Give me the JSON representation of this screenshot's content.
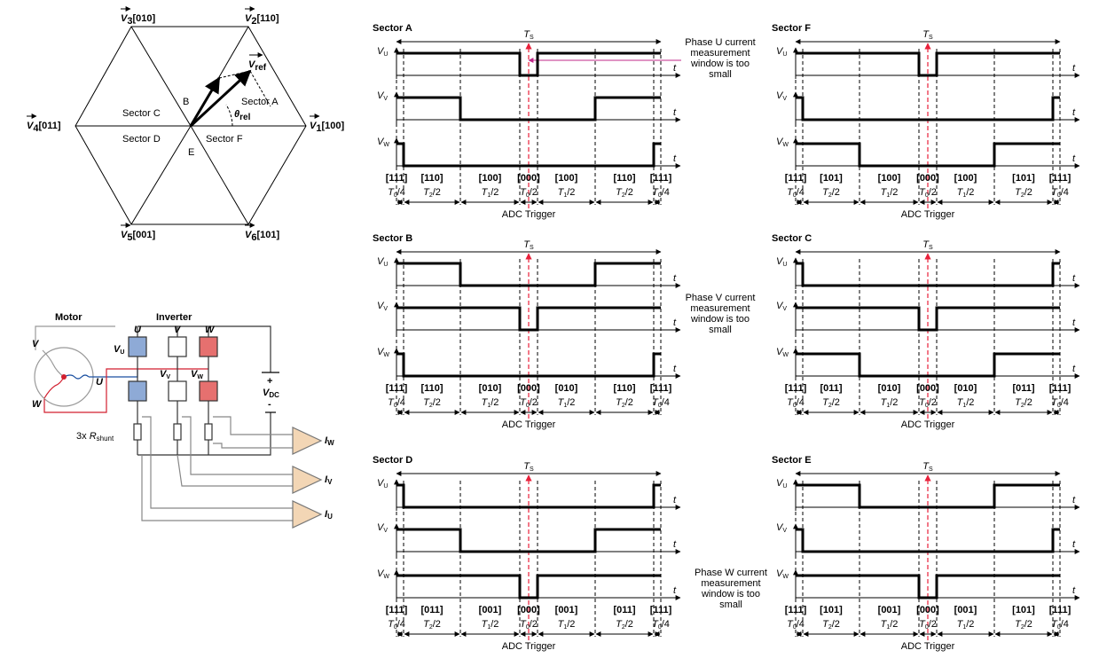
{
  "hexagon": {
    "vectors": [
      {
        "symbol": "V",
        "sub": "1",
        "code": "[100]"
      },
      {
        "symbol": "V",
        "sub": "2",
        "code": "[110]"
      },
      {
        "symbol": "V",
        "sub": "3",
        "code": "[010]"
      },
      {
        "symbol": "V",
        "sub": "4",
        "code": "[011]"
      },
      {
        "symbol": "V",
        "sub": "5",
        "code": "[001]"
      },
      {
        "symbol": "V",
        "sub": "6",
        "code": "[101]"
      }
    ],
    "sectors": [
      "Sector A",
      "Sector C",
      "Sector D",
      "Sector F"
    ],
    "regions": [
      "B",
      "E"
    ],
    "vref": {
      "symbol": "V",
      "sub": "ref"
    },
    "angle": {
      "symbol": "θ",
      "sub": "rel"
    }
  },
  "circuit": {
    "motor": "Motor",
    "inverter": "Inverter",
    "phases": [
      "U",
      "V",
      "W"
    ],
    "windings": [
      "V",
      "U",
      "W"
    ],
    "voltages": [
      {
        "symbol": "V",
        "sub": "U"
      },
      {
        "symbol": "V",
        "sub": "V"
      },
      {
        "symbol": "V",
        "sub": "W"
      }
    ],
    "vdc": {
      "symbol": "V",
      "sub": "DC"
    },
    "plus": "+",
    "minus": "-",
    "shunt": {
      "prefix": "3x ",
      "symbol": "R",
      "sub": "shunt"
    },
    "currents": [
      {
        "symbol": "I",
        "sub": "W"
      },
      {
        "symbol": "I",
        "sub": "V"
      },
      {
        "symbol": "I",
        "sub": "U"
      }
    ]
  },
  "panels": [
    {
      "title": "Sector A",
      "period": {
        "symbol": "T",
        "sub": "S"
      },
      "signals": [
        {
          "symbol": "V",
          "sub": "U"
        },
        {
          "symbol": "V",
          "sub": "V"
        },
        {
          "symbol": "V",
          "sub": "W"
        }
      ],
      "time_axis": "t",
      "states": [
        "[111]",
        "[110]",
        "[100]",
        "[000]",
        "[100]",
        "[110]",
        "[111]"
      ],
      "intervals": [
        {
          "symbol": "T",
          "sub": "0",
          "rest": "/4"
        },
        {
          "symbol": "T",
          "sub": "2",
          "rest": "/2"
        },
        {
          "symbol": "T",
          "sub": "1",
          "rest": "/2"
        },
        {
          "symbol": "T",
          "sub": "0",
          "rest": "/2"
        },
        {
          "symbol": "T",
          "sub": "1",
          "rest": "/2"
        },
        {
          "symbol": "T",
          "sub": "2",
          "rest": "/2"
        },
        {
          "symbol": "T",
          "sub": "0",
          "rest": "/4"
        }
      ],
      "trigger": "ADC Trigger"
    },
    {
      "title": "Sector F",
      "period": {
        "symbol": "T",
        "sub": "S"
      },
      "signals": [
        {
          "symbol": "V",
          "sub": "U"
        },
        {
          "symbol": "V",
          "sub": "V"
        },
        {
          "symbol": "V",
          "sub": "W"
        }
      ],
      "time_axis": "t",
      "states": [
        "[111]",
        "[101]",
        "[100]",
        "[000]",
        "[100]",
        "[101]",
        "[111]"
      ],
      "intervals": [
        {
          "symbol": "T",
          "sub": "0",
          "rest": "/4"
        },
        {
          "symbol": "T",
          "sub": "2",
          "rest": "/2"
        },
        {
          "symbol": "T",
          "sub": "1",
          "rest": "/2"
        },
        {
          "symbol": "T",
          "sub": "0",
          "rest": "/2"
        },
        {
          "symbol": "T",
          "sub": "1",
          "rest": "/2"
        },
        {
          "symbol": "T",
          "sub": "2",
          "rest": "/2"
        },
        {
          "symbol": "T",
          "sub": "0",
          "rest": "/4"
        }
      ],
      "trigger": "ADC Trigger"
    },
    {
      "title": "Sector B",
      "period": {
        "symbol": "T",
        "sub": "S"
      },
      "signals": [
        {
          "symbol": "V",
          "sub": "U"
        },
        {
          "symbol": "V",
          "sub": "V"
        },
        {
          "symbol": "V",
          "sub": "W"
        }
      ],
      "time_axis": "t",
      "states": [
        "[111]",
        "[110]",
        "[010]",
        "[000]",
        "[010]",
        "[110]",
        "[111]"
      ],
      "intervals": [
        {
          "symbol": "T",
          "sub": "0",
          "rest": "/4"
        },
        {
          "symbol": "T",
          "sub": "2",
          "rest": "/2"
        },
        {
          "symbol": "T",
          "sub": "1",
          "rest": "/2"
        },
        {
          "symbol": "T",
          "sub": "0",
          "rest": "/2"
        },
        {
          "symbol": "T",
          "sub": "1",
          "rest": "/2"
        },
        {
          "symbol": "T",
          "sub": "2",
          "rest": "/2"
        },
        {
          "symbol": "T",
          "sub": "0",
          "rest": "/4"
        }
      ],
      "trigger": "ADC Trigger"
    },
    {
      "title": "Sector C",
      "period": {
        "symbol": "T",
        "sub": "S"
      },
      "signals": [
        {
          "symbol": "V",
          "sub": "U"
        },
        {
          "symbol": "V",
          "sub": "V"
        },
        {
          "symbol": "V",
          "sub": "W"
        }
      ],
      "time_axis": "t",
      "states": [
        "[111]",
        "[011]",
        "[010]",
        "[000]",
        "[010]",
        "[011]",
        "[111]"
      ],
      "intervals": [
        {
          "symbol": "T",
          "sub": "0",
          "rest": "/4"
        },
        {
          "symbol": "T",
          "sub": "2",
          "rest": "/2"
        },
        {
          "symbol": "T",
          "sub": "1",
          "rest": "/2"
        },
        {
          "symbol": "T",
          "sub": "0",
          "rest": "/2"
        },
        {
          "symbol": "T",
          "sub": "1",
          "rest": "/2"
        },
        {
          "symbol": "T",
          "sub": "2",
          "rest": "/2"
        },
        {
          "symbol": "T",
          "sub": "0",
          "rest": "/4"
        }
      ],
      "trigger": "ADC Trigger"
    },
    {
      "title": "Sector D",
      "period": {
        "symbol": "T",
        "sub": "S"
      },
      "signals": [
        {
          "symbol": "V",
          "sub": "U"
        },
        {
          "symbol": "V",
          "sub": "V"
        },
        {
          "symbol": "V",
          "sub": "W"
        }
      ],
      "time_axis": "t",
      "states": [
        "[111]",
        "[011]",
        "[001]",
        "[000]",
        "[001]",
        "[011]",
        "[111]"
      ],
      "intervals": [
        {
          "symbol": "T",
          "sub": "0",
          "rest": "/4"
        },
        {
          "symbol": "T",
          "sub": "2",
          "rest": "/2"
        },
        {
          "symbol": "T",
          "sub": "1",
          "rest": "/2"
        },
        {
          "symbol": "T",
          "sub": "0",
          "rest": "/2"
        },
        {
          "symbol": "T",
          "sub": "1",
          "rest": "/2"
        },
        {
          "symbol": "T",
          "sub": "2",
          "rest": "/2"
        },
        {
          "symbol": "T",
          "sub": "0",
          "rest": "/4"
        }
      ],
      "trigger": "ADC Trigger"
    },
    {
      "title": "Sector E",
      "period": {
        "symbol": "T",
        "sub": "S"
      },
      "signals": [
        {
          "symbol": "V",
          "sub": "U"
        },
        {
          "symbol": "V",
          "sub": "V"
        },
        {
          "symbol": "V",
          "sub": "W"
        }
      ],
      "time_axis": "t",
      "states": [
        "[111]",
        "[101]",
        "[001]",
        "[000]",
        "[001]",
        "[101]",
        "[111]"
      ],
      "intervals": [
        {
          "symbol": "T",
          "sub": "0",
          "rest": "/4"
        },
        {
          "symbol": "T",
          "sub": "2",
          "rest": "/2"
        },
        {
          "symbol": "T",
          "sub": "1",
          "rest": "/2"
        },
        {
          "symbol": "T",
          "sub": "0",
          "rest": "/2"
        },
        {
          "symbol": "T",
          "sub": "1",
          "rest": "/2"
        },
        {
          "symbol": "T",
          "sub": "2",
          "rest": "/2"
        },
        {
          "symbol": "T",
          "sub": "0",
          "rest": "/4"
        }
      ],
      "trigger": "ADC Trigger"
    }
  ],
  "notes": [
    {
      "lines": [
        "Phase U current",
        "measurement",
        "window is too",
        "small"
      ]
    },
    {
      "lines": [
        "Phase V current",
        "measurement",
        "window is too",
        "small"
      ]
    },
    {
      "lines": [
        "Phase W current",
        "measurement",
        "window is too",
        "small"
      ]
    }
  ]
}
